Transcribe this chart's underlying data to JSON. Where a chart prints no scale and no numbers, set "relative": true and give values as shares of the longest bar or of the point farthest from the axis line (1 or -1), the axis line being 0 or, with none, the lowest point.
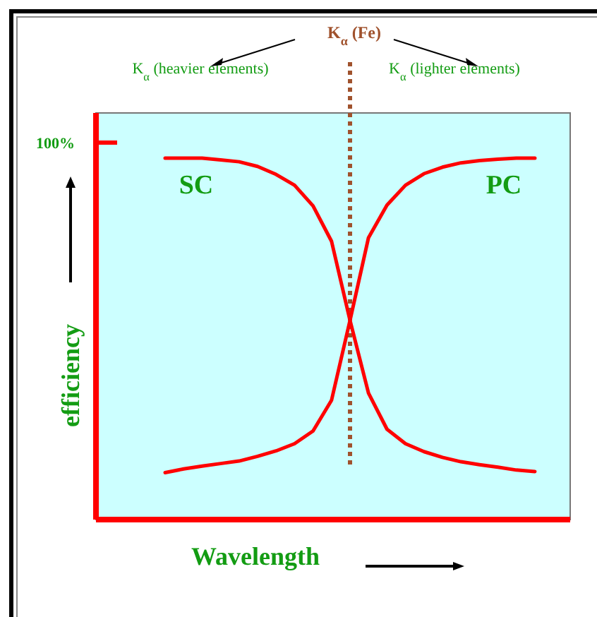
{
  "chart_data": {
    "type": "line",
    "relative": true,
    "xlabel": "Wavelength",
    "ylabel": "efficiency",
    "categories": [
      null,
      null,
      null,
      null,
      null,
      null,
      null,
      null,
      null,
      null,
      null,
      null,
      null,
      null,
      null,
      null,
      null,
      null,
      null,
      null,
      null
    ],
    "series": [
      {
        "name": "SC",
        "color": "#ff0000",
        "values": [
          1,
          1,
          1,
          0.995,
          0.99,
          0.977,
          0.955,
          0.925,
          0.868,
          0.77,
          0.551,
          0.35,
          0.25,
          0.21,
          0.188,
          0.172,
          0.16,
          0.152,
          0.145,
          0.137,
          0.133
        ]
      },
      {
        "name": "PC",
        "color": "#ff0000",
        "values": [
          0.13,
          0.14,
          0.148,
          0.155,
          0.162,
          0.175,
          0.19,
          0.21,
          0.245,
          0.33,
          0.551,
          0.78,
          0.87,
          0.925,
          0.957,
          0.975,
          0.987,
          0.993,
          0.997,
          1,
          1
        ]
      }
    ],
    "annotations": [
      "K$_{α}$ (Fe)",
      "K$_{α}$ (heavier elements)",
      "K$_{α}$ (lighter elements)",
      "100%"
    ],
    "marker": "none",
    "line_style": "solid"
  }
}
